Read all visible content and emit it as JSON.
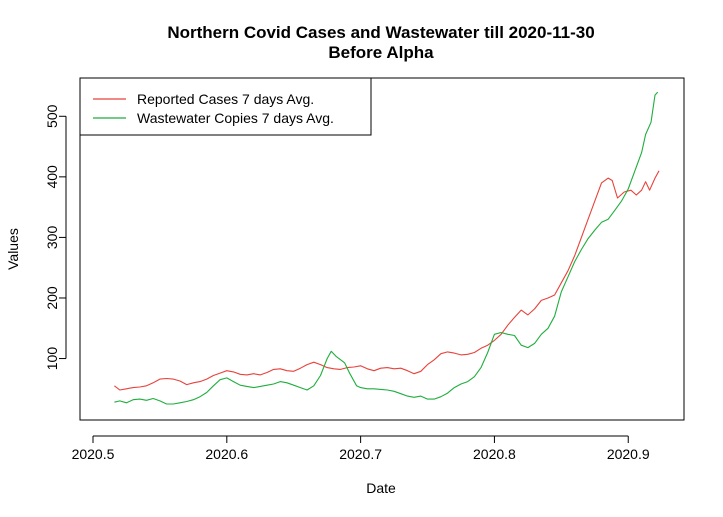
{
  "chart_data": {
    "type": "line",
    "title": "Northern Covid Cases and Wastewater till 2020-11-30",
    "subtitle": "Before Alpha",
    "xlabel": "Date",
    "ylabel": "Values",
    "xlim": [
      2020.5,
      2020.92
    ],
    "ylim": [
      20,
      550
    ],
    "xticks": [
      2020.5,
      2020.6,
      2020.7,
      2020.8,
      2020.9
    ],
    "xtick_labels": [
      "2020.5",
      "2020.6",
      "2020.7",
      "2020.8",
      "2020.9"
    ],
    "yticks": [
      100,
      200,
      300,
      400,
      500
    ],
    "ytick_labels": [
      "100",
      "200",
      "300",
      "400",
      "500"
    ],
    "grid": false,
    "legend_position": "top-left",
    "series": [
      {
        "name": "Reported Cases 7 days Avg.",
        "color": "#E8423A",
        "points": [
          [
            2020.516,
            55
          ],
          [
            2020.52,
            48
          ],
          [
            2020.525,
            50
          ],
          [
            2020.53,
            52
          ],
          [
            2020.535,
            53
          ],
          [
            2020.54,
            55
          ],
          [
            2020.545,
            60
          ],
          [
            2020.55,
            66
          ],
          [
            2020.555,
            67
          ],
          [
            2020.56,
            66
          ],
          [
            2020.565,
            63
          ],
          [
            2020.57,
            57
          ],
          [
            2020.575,
            60
          ],
          [
            2020.58,
            62
          ],
          [
            2020.585,
            66
          ],
          [
            2020.59,
            72
          ],
          [
            2020.595,
            76
          ],
          [
            2020.6,
            80
          ],
          [
            2020.605,
            78
          ],
          [
            2020.61,
            74
          ],
          [
            2020.615,
            73
          ],
          [
            2020.62,
            75
          ],
          [
            2020.625,
            73
          ],
          [
            2020.63,
            77
          ],
          [
            2020.635,
            82
          ],
          [
            2020.64,
            83
          ],
          [
            2020.645,
            80
          ],
          [
            2020.65,
            79
          ],
          [
            2020.655,
            84
          ],
          [
            2020.66,
            90
          ],
          [
            2020.665,
            94
          ],
          [
            2020.67,
            90
          ],
          [
            2020.675,
            85
          ],
          [
            2020.68,
            83
          ],
          [
            2020.685,
            82
          ],
          [
            2020.69,
            85
          ],
          [
            2020.695,
            86
          ],
          [
            2020.7,
            88
          ],
          [
            2020.705,
            83
          ],
          [
            2020.71,
            80
          ],
          [
            2020.715,
            84
          ],
          [
            2020.72,
            85
          ],
          [
            2020.725,
            83
          ],
          [
            2020.73,
            84
          ],
          [
            2020.735,
            80
          ],
          [
            2020.74,
            75
          ],
          [
            2020.745,
            79
          ],
          [
            2020.75,
            90
          ],
          [
            2020.755,
            98
          ],
          [
            2020.76,
            108
          ],
          [
            2020.765,
            111
          ],
          [
            2020.77,
            109
          ],
          [
            2020.775,
            106
          ],
          [
            2020.78,
            107
          ],
          [
            2020.785,
            110
          ],
          [
            2020.79,
            117
          ],
          [
            2020.795,
            122
          ],
          [
            2020.8,
            130
          ],
          [
            2020.805,
            140
          ],
          [
            2020.81,
            155
          ],
          [
            2020.815,
            168
          ],
          [
            2020.82,
            180
          ],
          [
            2020.825,
            172
          ],
          [
            2020.83,
            182
          ],
          [
            2020.835,
            196
          ],
          [
            2020.84,
            200
          ],
          [
            2020.845,
            205
          ],
          [
            2020.85,
            225
          ],
          [
            2020.855,
            245
          ],
          [
            2020.86,
            270
          ],
          [
            2020.865,
            300
          ],
          [
            2020.87,
            330
          ],
          [
            2020.875,
            360
          ],
          [
            2020.88,
            390
          ],
          [
            2020.885,
            398
          ],
          [
            2020.888,
            394
          ],
          [
            2020.892,
            365
          ],
          [
            2020.897,
            375
          ],
          [
            2020.902,
            378
          ],
          [
            2020.906,
            370
          ],
          [
            2020.91,
            378
          ],
          [
            2020.913,
            392
          ],
          [
            2020.916,
            378
          ],
          [
            2020.92,
            398
          ],
          [
            2020.923,
            410
          ]
        ]
      },
      {
        "name": "Wastewater Copies 7 days Avg.",
        "color": "#1FAE3D",
        "points": [
          [
            2020.516,
            28
          ],
          [
            2020.52,
            30
          ],
          [
            2020.525,
            27
          ],
          [
            2020.53,
            32
          ],
          [
            2020.535,
            33
          ],
          [
            2020.54,
            31
          ],
          [
            2020.545,
            34
          ],
          [
            2020.55,
            30
          ],
          [
            2020.555,
            25
          ],
          [
            2020.56,
            25
          ],
          [
            2020.565,
            27
          ],
          [
            2020.57,
            29
          ],
          [
            2020.575,
            32
          ],
          [
            2020.58,
            37
          ],
          [
            2020.585,
            44
          ],
          [
            2020.59,
            55
          ],
          [
            2020.595,
            65
          ],
          [
            2020.6,
            68
          ],
          [
            2020.605,
            62
          ],
          [
            2020.61,
            56
          ],
          [
            2020.615,
            54
          ],
          [
            2020.62,
            52
          ],
          [
            2020.625,
            54
          ],
          [
            2020.63,
            56
          ],
          [
            2020.635,
            58
          ],
          [
            2020.64,
            62
          ],
          [
            2020.645,
            60
          ],
          [
            2020.65,
            56
          ],
          [
            2020.655,
            52
          ],
          [
            2020.66,
            48
          ],
          [
            2020.665,
            55
          ],
          [
            2020.67,
            72
          ],
          [
            2020.675,
            100
          ],
          [
            2020.678,
            112
          ],
          [
            2020.682,
            103
          ],
          [
            2020.688,
            93
          ],
          [
            2020.692,
            75
          ],
          [
            2020.697,
            55
          ],
          [
            2020.7,
            52
          ],
          [
            2020.705,
            50
          ],
          [
            2020.71,
            50
          ],
          [
            2020.715,
            49
          ],
          [
            2020.72,
            48
          ],
          [
            2020.725,
            46
          ],
          [
            2020.73,
            42
          ],
          [
            2020.735,
            38
          ],
          [
            2020.74,
            36
          ],
          [
            2020.745,
            38
          ],
          [
            2020.75,
            33
          ],
          [
            2020.755,
            33
          ],
          [
            2020.76,
            37
          ],
          [
            2020.765,
            43
          ],
          [
            2020.77,
            52
          ],
          [
            2020.775,
            58
          ],
          [
            2020.78,
            62
          ],
          [
            2020.785,
            70
          ],
          [
            2020.79,
            85
          ],
          [
            2020.795,
            110
          ],
          [
            2020.8,
            140
          ],
          [
            2020.805,
            143
          ],
          [
            2020.81,
            140
          ],
          [
            2020.815,
            138
          ],
          [
            2020.82,
            122
          ],
          [
            2020.825,
            118
          ],
          [
            2020.83,
            125
          ],
          [
            2020.835,
            140
          ],
          [
            2020.84,
            150
          ],
          [
            2020.845,
            170
          ],
          [
            2020.85,
            210
          ],
          [
            2020.855,
            235
          ],
          [
            2020.86,
            260
          ],
          [
            2020.865,
            280
          ],
          [
            2020.87,
            298
          ],
          [
            2020.875,
            312
          ],
          [
            2020.88,
            325
          ],
          [
            2020.885,
            330
          ],
          [
            2020.89,
            345
          ],
          [
            2020.895,
            360
          ],
          [
            2020.9,
            380
          ],
          [
            2020.905,
            410
          ],
          [
            2020.91,
            440
          ],
          [
            2020.913,
            470
          ],
          [
            2020.917,
            490
          ],
          [
            2020.92,
            535
          ],
          [
            2020.922,
            540
          ]
        ]
      }
    ]
  }
}
